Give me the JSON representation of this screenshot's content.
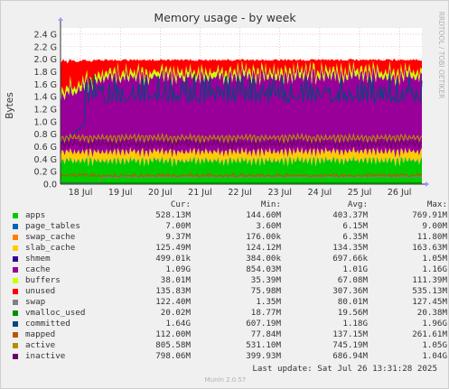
{
  "chart_data": {
    "type": "area",
    "title": "Memory usage - by week",
    "ylabel": "Bytes",
    "side_label": "RRDTOOL / TOBI OETIKER",
    "x_tick_labels": [
      "18 Jul",
      "19 Jul",
      "20 Jul",
      "21 Jul",
      "22 Jul",
      "23 Jul",
      "24 Jul",
      "25 Jul",
      "26 Jul"
    ],
    "y_tick_labels": [
      "0.0",
      "0.2 G",
      "0.4 G",
      "0.6 G",
      "0.8 G",
      "1.0 G",
      "1.2 G",
      "1.4 G",
      "1.6 G",
      "1.8 G",
      "2.0 G",
      "2.2 G",
      "2.4 G"
    ],
    "ylim_gb": [
      0,
      2.5
    ],
    "x_range_days": [
      "17 Jul 12:00",
      "26 Jul 13:31"
    ],
    "grid": true,
    "stack_order": [
      "apps",
      "page_tables",
      "swap_cache",
      "slab_cache",
      "shmem",
      "cache",
      "buffers",
      "unused"
    ],
    "overlay_lines": [
      "swap",
      "vmalloc_used",
      "committed",
      "mapped",
      "active",
      "inactive"
    ],
    "columns": [
      "Cur:",
      "Min:",
      "Avg:",
      "Max:"
    ],
    "series": [
      {
        "name": "apps",
        "color": "#00cc00",
        "cur": "528.13M",
        "min": "144.60M",
        "avg": "403.37M",
        "max": "769.91M"
      },
      {
        "name": "page_tables",
        "color": "#0066b3",
        "cur": "7.00M",
        "min": "3.60M",
        "avg": "6.15M",
        "max": "9.00M"
      },
      {
        "name": "swap_cache",
        "color": "#ff8000",
        "cur": "9.37M",
        "min": "176.00k",
        "avg": "6.35M",
        "max": "11.80M"
      },
      {
        "name": "slab_cache",
        "color": "#ffcc00",
        "cur": "125.49M",
        "min": "124.12M",
        "avg": "134.35M",
        "max": "163.63M"
      },
      {
        "name": "shmem",
        "color": "#330099",
        "cur": "499.01k",
        "min": "384.00k",
        "avg": "697.66k",
        "max": "1.05M"
      },
      {
        "name": "cache",
        "color": "#990099",
        "cur": "1.09G",
        "min": "854.03M",
        "avg": "1.01G",
        "max": "1.16G"
      },
      {
        "name": "buffers",
        "color": "#ccff00",
        "cur": "38.01M",
        "min": "35.39M",
        "avg": "67.08M",
        "max": "111.39M"
      },
      {
        "name": "unused",
        "color": "#ff0000",
        "cur": "135.83M",
        "min": "75.98M",
        "avg": "307.36M",
        "max": "535.13M"
      },
      {
        "name": "swap",
        "color": "#808080",
        "cur": "122.40M",
        "min": "1.35M",
        "avg": "80.01M",
        "max": "127.45M"
      },
      {
        "name": "vmalloc_used",
        "color": "#008f00",
        "cur": "20.02M",
        "min": "18.77M",
        "avg": "19.56M",
        "max": "20.38M"
      },
      {
        "name": "committed",
        "color": "#00487d",
        "cur": "1.64G",
        "min": "607.19M",
        "avg": "1.18G",
        "max": "1.96G"
      },
      {
        "name": "mapped",
        "color": "#b35a00",
        "cur": "112.00M",
        "min": "77.84M",
        "avg": "137.15M",
        "max": "261.61M"
      },
      {
        "name": "active",
        "color": "#b38f00",
        "cur": "805.58M",
        "min": "531.10M",
        "avg": "745.19M",
        "max": "1.05G"
      },
      {
        "name": "inactive",
        "color": "#6b006b",
        "cur": "798.06M",
        "min": "399.93M",
        "avg": "686.94M",
        "max": "1.04G"
      }
    ]
  },
  "footer": {
    "last_update": "Last update: Sat Jul 26 13:31:28 2025",
    "munin_version": "Munin 2.0.57"
  }
}
